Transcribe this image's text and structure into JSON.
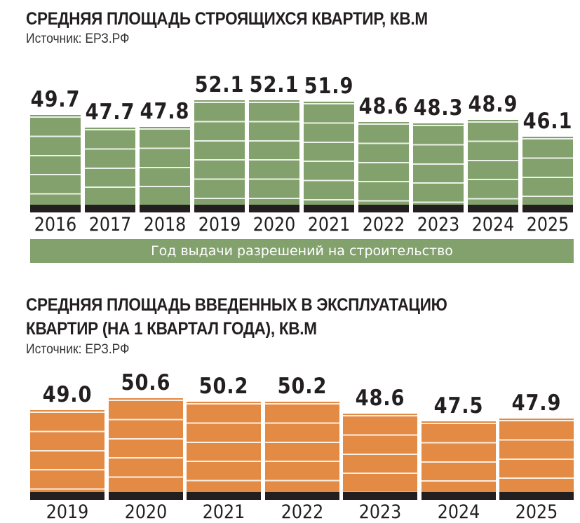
{
  "chart1": {
    "title": "СРЕДНЯЯ ПЛОЩАДЬ СТРОЯЩИХСЯ КВАРТИР,  КВ.М",
    "source": "Источник: ЕРЗ.РФ",
    "xlabel_band": "Год выдачи разрешений на строительство",
    "bar_color": "#83a16d"
  },
  "chart2": {
    "title_line1": "СРЕДНЯЯ ПЛОЩАДЬ ВВЕДЕННЫХ В ЭКСПЛУАТАЦИЮ",
    "title_line2": "КВАРТИР (НА 1 КВАРТАЛ ГОДА), КВ.М",
    "source": "Источник: ЕРЗ.РФ",
    "bar_color": "#e38a45"
  },
  "chart_data": [
    {
      "type": "bar",
      "title": "СРЕДНЯЯ ПЛОЩАДЬ СТРОЯЩИХСЯ КВАРТИР, КВ.М",
      "subtitle": "Источник: ЕРЗ.РФ",
      "xlabel": "Год выдачи разрешений на строительство",
      "ylabel": "кв.м",
      "categories": [
        "2016",
        "2017",
        "2018",
        "2019",
        "2020",
        "2021",
        "2022",
        "2023",
        "2024",
        "2025"
      ],
      "values": [
        49.7,
        47.7,
        47.8,
        52.1,
        52.1,
        51.9,
        48.6,
        48.3,
        48.9,
        46.1
      ],
      "labels": [
        "49.7",
        "47.7",
        "47.8",
        "52.1",
        "52.1",
        "51.9",
        "48.6",
        "48.3",
        "48.9",
        "46.1"
      ],
      "color": "#83a16d",
      "grid": false,
      "legend": null
    },
    {
      "type": "bar",
      "title": "СРЕДНЯЯ ПЛОЩАДЬ ВВЕДЕННЫХ В ЭКСПЛУАТАЦИЮ КВАРТИР (НА 1 КВАРТАЛ ГОДА), КВ.М",
      "subtitle": "Источник: ЕРЗ.РФ",
      "xlabel": "",
      "ylabel": "кв.м",
      "categories": [
        "2019",
        "2020",
        "2021",
        "2022",
        "2023",
        "2024",
        "2025"
      ],
      "values": [
        49.0,
        50.6,
        50.2,
        50.2,
        48.6,
        47.5,
        47.9
      ],
      "labels": [
        "49.0",
        "50.6",
        "50.2",
        "50.2",
        "48.6",
        "47.5",
        "47.9"
      ],
      "color": "#e38a45",
      "grid": false,
      "legend": null
    }
  ]
}
